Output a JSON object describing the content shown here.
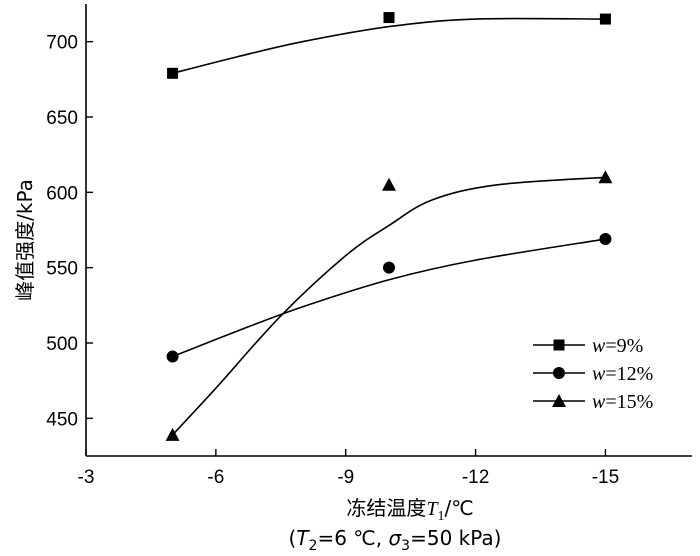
{
  "chart_data": {
    "type": "scatter",
    "title": "",
    "xlabel": {
      "name": "冻结温度",
      "symbol": "T",
      "subscript": "1",
      "unit": "/℃"
    },
    "condition_label": {
      "open": "(",
      "t2_symbol": "T",
      "t2_sub": "2",
      "t2_value": "=6 ℃, ",
      "sigma_symbol": "σ",
      "sigma_sub": "3",
      "sigma_value": "=50 kPa",
      "close": ")"
    },
    "ylabel": "峰值强度/kPa",
    "xlim": [
      -3,
      -17
    ],
    "ylim": [
      425,
      725
    ],
    "x_ticks": [
      {
        "value": -3,
        "label": "-3"
      },
      {
        "value": -6,
        "label": "-6"
      },
      {
        "value": -9,
        "label": "-9"
      },
      {
        "value": -12,
        "label": "-12"
      },
      {
        "value": -15,
        "label": "-15"
      }
    ],
    "y_ticks": [
      {
        "value": 450,
        "label": "450"
      },
      {
        "value": 500,
        "label": "500"
      },
      {
        "value": 550,
        "label": "550"
      },
      {
        "value": 600,
        "label": "600"
      },
      {
        "value": 650,
        "label": "650"
      },
      {
        "value": 700,
        "label": "700"
      }
    ],
    "legend_position": "right",
    "series": [
      {
        "name_symbol": "w",
        "name_value": "=9%",
        "marker": "square",
        "x": [
          -5,
          -10,
          -15
        ],
        "y": [
          679,
          716,
          715
        ],
        "fit_curve": {
          "x": [
            -5,
            -6.5,
            -8,
            -10,
            -12,
            -15
          ],
          "y": [
            679,
            690,
            700,
            710,
            715,
            715
          ]
        }
      },
      {
        "name_symbol": "w",
        "name_value": "=12%",
        "marker": "circle",
        "x": [
          -5,
          -10,
          -15
        ],
        "y": [
          491,
          550,
          569
        ],
        "fit_curve": {
          "x": [
            -5,
            -6.5,
            -8,
            -10,
            -12,
            -15
          ],
          "y": [
            491,
            508,
            524,
            542,
            555,
            569
          ]
        }
      },
      {
        "name_symbol": "w",
        "name_value": "=15%",
        "marker": "triangle",
        "x": [
          -5,
          -10,
          -15
        ],
        "y": [
          439,
          605,
          610
        ],
        "fit_curve": {
          "x": [
            -5,
            -6,
            -7.5,
            -9,
            -10,
            -11,
            -12.5,
            -15
          ],
          "y": [
            439,
            470,
            518,
            558,
            578,
            595,
            605,
            610
          ]
        }
      }
    ]
  }
}
